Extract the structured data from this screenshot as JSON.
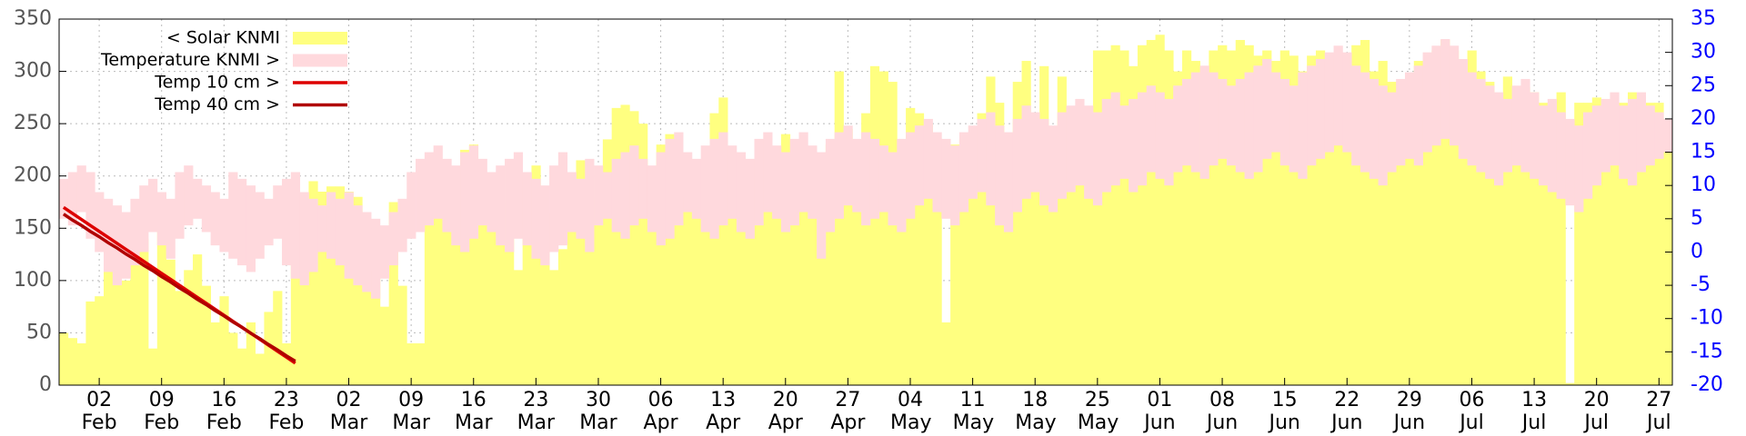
{
  "chart_data": {
    "type": "combo",
    "categories": [
      "29 Jan",
      "30 Jan",
      "31 Jan",
      "01 Feb",
      "02 Feb",
      "03 Feb",
      "04 Feb",
      "05 Feb",
      "06 Feb",
      "07 Feb",
      "08 Feb",
      "09 Feb",
      "10 Feb",
      "11 Feb",
      "12 Feb",
      "13 Feb",
      "14 Feb",
      "15 Feb",
      "16 Feb",
      "17 Feb",
      "18 Feb",
      "19 Feb",
      "20 Feb",
      "21 Feb",
      "22 Feb",
      "23 Feb",
      "24 Feb",
      "25 Feb",
      "26 Feb",
      "27 Feb",
      "28 Feb",
      "01 Mar",
      "02 Mar",
      "03 Mar",
      "04 Mar",
      "05 Mar",
      "06 Mar",
      "07 Mar",
      "08 Mar",
      "09 Mar",
      "10 Mar",
      "11 Mar",
      "12 Mar",
      "13 Mar",
      "14 Mar",
      "15 Mar",
      "16 Mar",
      "17 Mar",
      "18 Mar",
      "19 Mar",
      "20 Mar",
      "21 Mar",
      "22 Mar",
      "23 Mar",
      "24 Mar",
      "25 Mar",
      "26 Mar",
      "27 Mar",
      "28 Mar",
      "29 Mar",
      "30 Mar",
      "31 Mar",
      "01 Apr",
      "02 Apr",
      "03 Apr",
      "04 Apr",
      "05 Apr",
      "06 Apr",
      "07 Apr",
      "08 Apr",
      "09 Apr",
      "10 Apr",
      "11 Apr",
      "12 Apr",
      "13 Apr",
      "14 Apr",
      "15 Apr",
      "16 Apr",
      "17 Apr",
      "18 Apr",
      "19 Apr",
      "20 Apr",
      "21 Apr",
      "22 Apr",
      "23 Apr",
      "24 Apr",
      "25 Apr",
      "26 Apr",
      "27 Apr",
      "28 Apr",
      "29 Apr",
      "30 Apr",
      "01 May",
      "02 May",
      "03 May",
      "04 May",
      "05 May",
      "06 May",
      "07 May",
      "08 May",
      "09 May",
      "10 May",
      "11 May",
      "12 May",
      "13 May",
      "14 May",
      "15 May",
      "16 May",
      "17 May",
      "18 May",
      "19 May",
      "20 May",
      "21 May",
      "22 May",
      "23 May",
      "24 May",
      "25 May",
      "26 May",
      "27 May",
      "28 May",
      "29 May",
      "30 May",
      "31 May",
      "01 Jun",
      "02 Jun",
      "03 Jun",
      "04 Jun",
      "05 Jun",
      "06 Jun",
      "07 Jun",
      "08 Jun",
      "09 Jun",
      "10 Jun",
      "11 Jun",
      "12 Jun",
      "13 Jun",
      "14 Jun",
      "15 Jun",
      "16 Jun",
      "17 Jun",
      "18 Jun",
      "19 Jun",
      "20 Jun",
      "21 Jun",
      "22 Jun",
      "23 Jun",
      "24 Jun",
      "25 Jun",
      "26 Jun",
      "27 Jun",
      "28 Jun",
      "29 Jun",
      "30 Jun",
      "01 Jul",
      "02 Jul",
      "03 Jul",
      "04 Jul",
      "05 Jul",
      "06 Jul",
      "07 Jul",
      "08 Jul",
      "09 Jul",
      "10 Jul",
      "11 Jul",
      "12 Jul",
      "13 Jul",
      "14 Jul",
      "15 Jul",
      "16 Jul",
      "17 Jul",
      "18 Jul",
      "19 Jul",
      "20 Jul",
      "21 Jul",
      "22 Jul",
      "23 Jul",
      "24 Jul",
      "25 Jul",
      "26 Jul",
      "27 Jul",
      "28 Jul"
    ],
    "xticks": [
      "02 Feb",
      "09 Feb",
      "16 Feb",
      "23 Feb",
      "02 Mar",
      "09 Mar",
      "16 Mar",
      "23 Mar",
      "30 Mar",
      "06 Apr",
      "13 Apr",
      "20 Apr",
      "27 Apr",
      "04 May",
      "11 May",
      "18 May",
      "25 May",
      "01 Jun",
      "08 Jun",
      "15 Jun",
      "22 Jun",
      "29 Jun",
      "06 Jul",
      "13 Jul",
      "20 Jul",
      "27 Jul"
    ],
    "ylim": [
      0,
      350
    ],
    "yticks": [
      0,
      50,
      100,
      150,
      200,
      250,
      300,
      350
    ],
    "y2lim": [
      -20,
      35
    ],
    "y2ticks": [
      -20,
      -15,
      -10,
      -5,
      0,
      5,
      10,
      15,
      20,
      25,
      30,
      35
    ],
    "grid": true,
    "legend": "top-left",
    "series": [
      {
        "name": "< Solar KNMI",
        "color": "#ffff80",
        "values": [
          50,
          45,
          40,
          80,
          85,
          110,
          125,
          100,
          120,
          140,
          35,
          150,
          120,
          90,
          110,
          125,
          95,
          60,
          85,
          50,
          35,
          60,
          30,
          70,
          90,
          40,
          120,
          180,
          195,
          185,
          190,
          190,
          185,
          180,
          100,
          110,
          75,
          175,
          95,
          40,
          40,
          210,
          215,
          150,
          180,
          225,
          230,
          180,
          190,
          175,
          165,
          110,
          170,
          210,
          165,
          110,
          130,
          190,
          215,
          175,
          180,
          235,
          265,
          268,
          262,
          250,
          190,
          230,
          240,
          170,
          180,
          195,
          210,
          260,
          275,
          220,
          190,
          150,
          180,
          230,
          220,
          240,
          225,
          210,
          215,
          195,
          230,
          300,
          245,
          230,
          260,
          305,
          300,
          290,
          230,
          265,
          260,
          250,
          220,
          60,
          230,
          235,
          190,
          260,
          295,
          270,
          240,
          290,
          310,
          260,
          305,
          220,
          295,
          230,
          250,
          255,
          320,
          320,
          325,
          320,
          305,
          325,
          330,
          335,
          320,
          300,
          320,
          310,
          305,
          320,
          325,
          320,
          330,
          325,
          315,
          320,
          310,
          320,
          315,
          300,
          315,
          320,
          315,
          300,
          310,
          325,
          330,
          300,
          310,
          290,
          250,
          250,
          310,
          310,
          320,
          330,
          320,
          295,
          320,
          300,
          290,
          260,
          295,
          260,
          285,
          280,
          270,
          240,
          280,
          2,
          270,
          270,
          275,
          260,
          265,
          270,
          280,
          260,
          270,
          270,
          240
        ]
      },
      {
        "name": "Temperature KNMI >",
        "color": "#ffd9dd",
        "axis": "y2",
        "max": [
          11,
          12,
          13,
          12,
          9,
          8,
          7,
          6,
          8,
          10,
          11,
          9,
          8,
          12,
          13,
          11,
          10,
          9,
          8,
          12,
          11,
          10,
          9,
          8,
          10,
          11,
          12,
          9,
          8,
          7,
          9,
          8,
          9,
          7,
          6,
          5,
          4,
          6,
          8,
          12,
          14,
          15,
          16,
          14,
          13,
          15,
          16,
          14,
          12,
          13,
          14,
          15,
          12,
          11,
          10,
          13,
          15,
          12,
          11,
          14,
          13,
          12,
          14,
          15,
          16,
          14,
          13,
          15,
          17,
          18,
          15,
          14,
          16,
          17,
          18,
          16,
          15,
          14,
          17,
          18,
          16,
          15,
          17,
          18,
          16,
          15,
          17,
          18,
          19,
          17,
          18,
          17,
          16,
          15,
          17,
          18,
          19,
          20,
          18,
          17,
          16,
          18,
          19,
          20,
          21,
          19,
          18,
          20,
          22,
          21,
          20,
          19,
          21,
          22,
          23,
          22,
          21,
          23,
          24,
          22,
          23,
          24,
          25,
          24,
          23,
          25,
          26,
          27,
          28,
          27,
          26,
          25,
          26,
          27,
          28,
          29,
          27,
          26,
          25,
          27,
          28,
          29,
          30,
          31,
          30,
          28,
          27,
          26,
          25,
          24,
          26,
          27,
          28,
          30,
          31,
          32,
          31,
          29,
          27,
          26,
          25,
          24,
          23,
          25,
          26,
          24,
          22,
          23,
          21,
          20,
          19,
          21,
          22,
          23,
          24,
          22,
          23,
          24,
          22,
          21,
          20
        ],
        "min": [
          5,
          4,
          6,
          2,
          0,
          -3,
          -5,
          -4,
          -2,
          0,
          3,
          1,
          -1,
          2,
          4,
          5,
          3,
          1,
          0,
          -1,
          -2,
          -3,
          -1,
          1,
          2,
          -2,
          -4,
          -5,
          -3,
          0,
          -1,
          -2,
          -4,
          -5,
          -6,
          -7,
          -4,
          -2,
          0,
          2,
          3,
          4,
          5,
          3,
          1,
          0,
          2,
          4,
          3,
          1,
          0,
          2,
          1,
          -1,
          -2,
          0,
          1,
          3,
          2,
          0,
          4,
          5,
          3,
          2,
          4,
          5,
          3,
          1,
          2,
          4,
          6,
          5,
          3,
          2,
          4,
          5,
          3,
          2,
          4,
          6,
          5,
          3,
          4,
          6,
          5,
          -1,
          3,
          5,
          7,
          6,
          4,
          5,
          6,
          4,
          3,
          5,
          7,
          8,
          6,
          5,
          4,
          6,
          8,
          9,
          7,
          4,
          3,
          6,
          8,
          9,
          7,
          6,
          8,
          9,
          10,
          8,
          7,
          9,
          10,
          11,
          9,
          10,
          12,
          11,
          10,
          12,
          13,
          12,
          11,
          13,
          14,
          13,
          12,
          11,
          12,
          14,
          15,
          13,
          12,
          11,
          13,
          14,
          15,
          16,
          15,
          13,
          12,
          11,
          10,
          12,
          13,
          14,
          13,
          15,
          16,
          17,
          16,
          14,
          13,
          12,
          11,
          10,
          12,
          13,
          12,
          11,
          10,
          9,
          8,
          7,
          6,
          8,
          10,
          12,
          13,
          11,
          10,
          12,
          13,
          14,
          15
        ]
      },
      {
        "name": "Temp 10 cm >",
        "color": "#dd0000",
        "axis": "y2",
        "x": [
          "29 Jan",
          "30 Jan",
          "31 Jan",
          "01 Feb",
          "02 Feb",
          "03 Feb",
          "04 Feb",
          "05 Feb",
          "06 Feb",
          "07 Feb",
          "08 Feb",
          "09 Feb",
          "10 Feb",
          "11 Feb",
          "12 Feb",
          "13 Feb",
          "14 Feb",
          "15 Feb",
          "16 Feb",
          "17 Feb",
          "18 Feb",
          "19 Feb",
          "20 Feb",
          "21 Feb",
          "22 Feb",
          "23 Feb",
          "24 Feb"
        ],
        "values": [
          6.7,
          5.8,
          4.9,
          4.0,
          3.1,
          2.2,
          1.3,
          0.4,
          -0.5,
          -1.4,
          -2.3,
          -3.2,
          -4.1,
          -5.0,
          -5.9,
          -6.8,
          -7.7,
          -8.6,
          -9.5,
          -10.4,
          -11.3,
          -12.2,
          -13.1,
          -14.0,
          -14.9,
          -15.8,
          -16.7
        ]
      },
      {
        "name": "Temp 40 cm >",
        "color": "#b00000",
        "axis": "y2",
        "x": [
          "29 Jan",
          "30 Jan",
          "31 Jan",
          "01 Feb",
          "02 Feb",
          "03 Feb",
          "04 Feb",
          "05 Feb",
          "06 Feb",
          "07 Feb",
          "08 Feb",
          "09 Feb",
          "10 Feb",
          "11 Feb",
          "12 Feb",
          "13 Feb",
          "14 Feb",
          "15 Feb",
          "16 Feb",
          "17 Feb",
          "18 Feb",
          "19 Feb",
          "20 Feb",
          "21 Feb",
          "22 Feb",
          "23 Feb",
          "24 Feb"
        ],
        "values": [
          5.7,
          4.8,
          4.0,
          3.1,
          2.3,
          1.4,
          0.6,
          -0.3,
          -1.1,
          -2.0,
          -2.8,
          -3.7,
          -4.5,
          -5.4,
          -6.2,
          -7.1,
          -7.9,
          -8.8,
          -9.6,
          -10.5,
          -11.3,
          -12.2,
          -13.0,
          -13.9,
          -14.7,
          -15.6,
          -16.4
        ]
      }
    ]
  }
}
